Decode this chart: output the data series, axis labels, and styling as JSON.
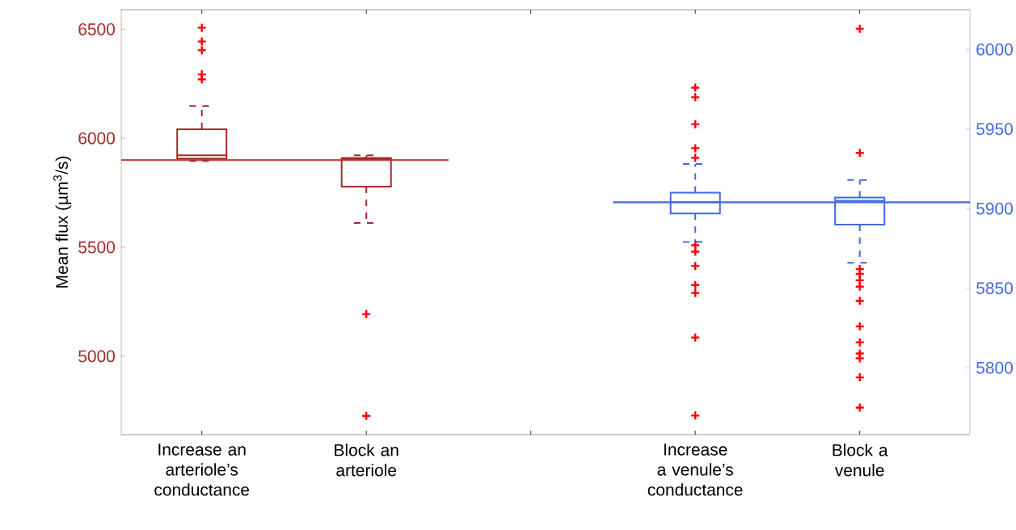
{
  "chart_data": {
    "type": "box",
    "ylabel": "Mean flux (µm$^{3}$/s)",
    "categories": [
      "Increase an arteriole’s conductance",
      "Block an arteriole",
      null,
      "Increase a venule’s conductance",
      "Block a venule"
    ],
    "ylim": [
      4640,
      6590
    ],
    "yticks": [
      5000,
      5500,
      6000,
      6500
    ],
    "y2lim": [
      5758,
      6025
    ],
    "y2ticks": [
      5800,
      5850,
      5900,
      5950,
      6000
    ],
    "marker": "cross",
    "series": [
      {
        "color": "#a52a2a",
        "boxes": [
          {
            "low": 5896,
            "q1": 5907,
            "median": 5922,
            "q3": 6041,
            "high": 6148,
            "outliers": [
              6507,
              6444,
              6404,
              6293,
              6270
            ]
          },
          {
            "low": 5611,
            "q1": 5778,
            "median": 5905,
            "q3": 5910,
            "high": 5922,
            "outliers": [
              5193,
              4726
            ]
          },
          null,
          null,
          null
        ]
      },
      {
        "color": "#4169e1",
        "axis": "y2",
        "boxes": [
          null,
          null,
          null,
          {
            "low": 5879,
            "q1": 5897,
            "median": 5904,
            "q3": 5910,
            "high": 5928,
            "outliers": [
              5976,
              5970,
              5953,
              5938,
              5932,
              5877,
              5873,
              5864,
              5852,
              5847,
              5819,
              5770
            ]
          },
          {
            "low": 5866,
            "q1": 5890,
            "median": 5905,
            "q3": 5907,
            "high": 5918,
            "outliers": [
              6013,
              5935,
              5862,
              5859,
              5855,
              5851,
              5842,
              5826,
              5816,
              5809,
              5806,
              5794,
              5775
            ]
          }
        ]
      }
    ],
    "ref_lines": [
      {
        "axis": "y",
        "value": 5900,
        "color": "#c84848"
      },
      {
        "axis": "y2",
        "value": 5904,
        "color": "#4169e1"
      }
    ]
  }
}
